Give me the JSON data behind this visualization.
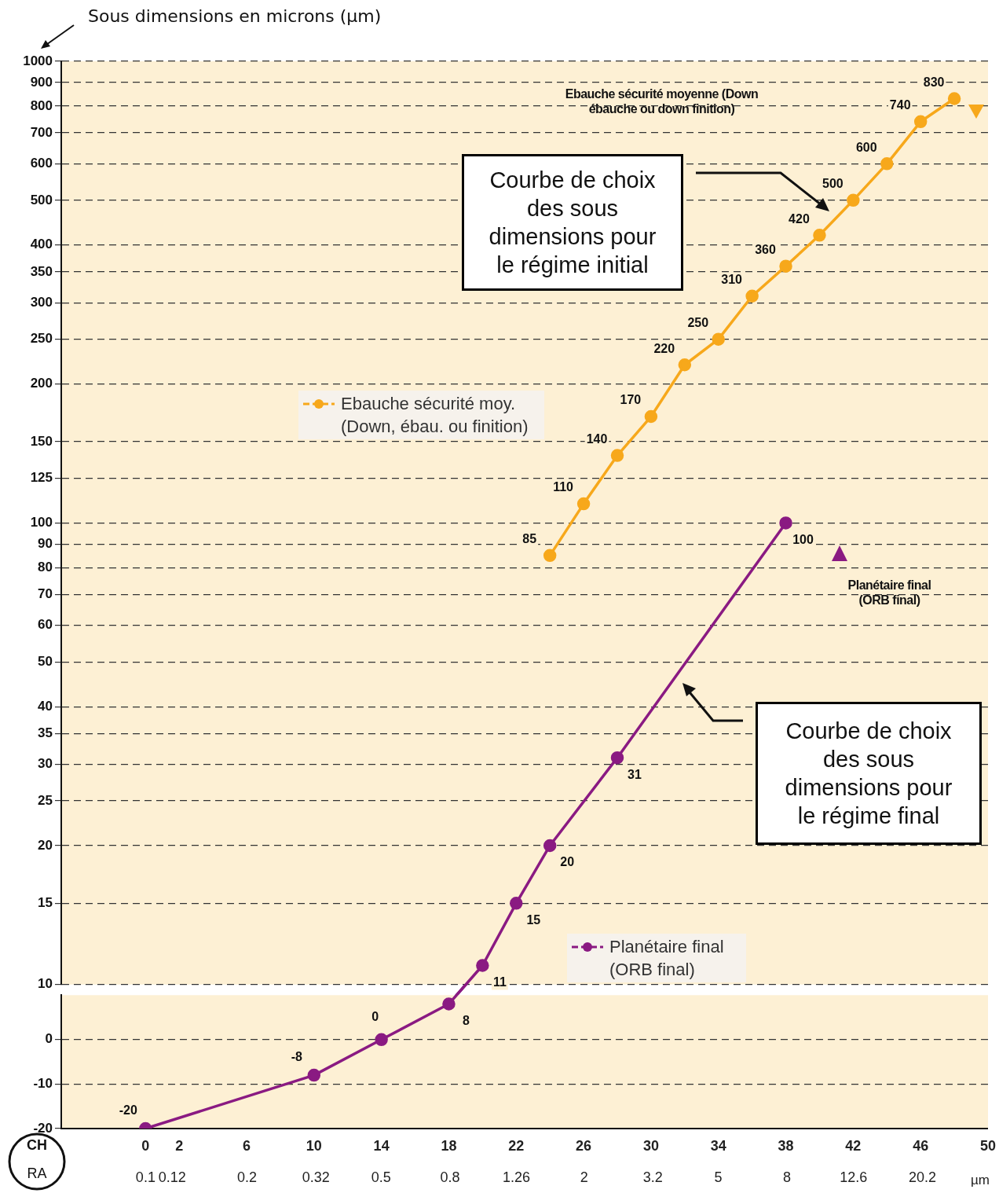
{
  "chart_data": [
    {
      "type": "line",
      "ylabel": "Sous dimensions en microns (µm)",
      "xlim": [
        -5,
        50
      ],
      "ylim": [
        10,
        1000
      ],
      "yticks": [
        1000,
        900,
        800,
        700,
        600,
        500,
        400,
        350,
        300,
        250,
        200,
        150,
        125,
        100,
        90,
        80,
        70,
        60,
        50,
        40,
        35,
        30,
        25,
        20,
        15,
        10
      ],
      "log": true,
      "grid": "y",
      "legend": "center",
      "marker": "circle",
      "line_style": "solid",
      "data_labels": true,
      "tick_labels": "y",
      "series": [
        {
          "name": "Ebauche sécurité moy. (Down, ébau. ou finition)",
          "color": "#f7a81b",
          "x": [
            24,
            26,
            28,
            30,
            32,
            34,
            36,
            38,
            40,
            42,
            44,
            46,
            48
          ],
          "values": [
            85,
            110,
            140,
            170,
            220,
            250,
            310,
            360,
            420,
            500,
            600,
            740,
            830
          ]
        },
        {
          "name": "Planétaire final (ORB final)",
          "color": "#8a1a82",
          "x": [
            20,
            22,
            24,
            28,
            38
          ],
          "values": [
            11,
            15,
            20,
            31,
            100
          ]
        }
      ],
      "annotations": [
        "Ebauche sécurité moyenne (Down ébauche ou down finition)",
        "Planétaire final (ORB final)",
        "Courbe de choix des sous dimensions pour le régime initial",
        "Courbe de choix des sous dimensions pour le régime final"
      ]
    },
    {
      "type": "line",
      "xlabel": "CH",
      "x2label": "RA",
      "xlim": [
        -5,
        50
      ],
      "xticks": [
        0,
        2,
        6,
        10,
        14,
        18,
        22,
        26,
        30,
        34,
        38,
        42,
        46,
        50
      ],
      "x2lim": [
        0.0562,
        31.6
      ],
      "x2ticks": [
        0.1,
        0.12,
        0.2,
        0.32,
        0.5,
        0.8,
        1.26,
        2,
        3.2,
        5,
        8,
        12.6,
        20.2
      ],
      "ylim": [
        -20,
        10
      ],
      "yticks": [
        0,
        -10,
        -20
      ],
      "log": "x2",
      "grid": "y",
      "marker": "circle",
      "line_style": "solid",
      "data_labels": true,
      "series": [
        {
          "color": "#8a1a82",
          "x": [
            0,
            10,
            14,
            18
          ],
          "values": [
            -20,
            -8,
            0,
            8
          ]
        }
      ],
      "annotations": [
        "µm"
      ]
    }
  ]
}
